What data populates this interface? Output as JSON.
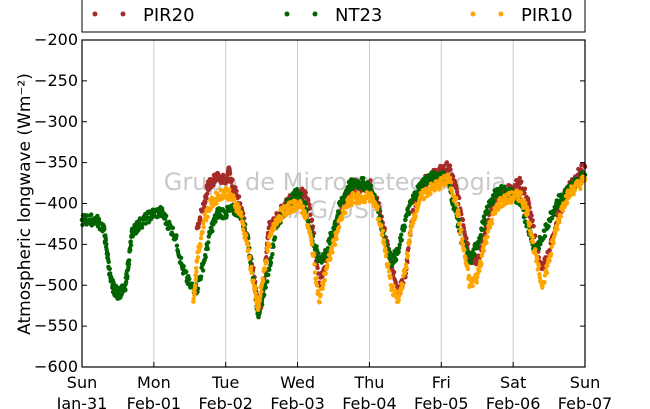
{
  "chart_data": {
    "type": "scatter",
    "ylabel": "Atmospheric longwave (Wm⁻²)",
    "ylim": [
      -600,
      -200
    ],
    "yticks": [
      "−200",
      "−250",
      "−300",
      "−350",
      "−400",
      "−450",
      "−500",
      "−550",
      "−600"
    ],
    "ytick_values": [
      -200,
      -250,
      -300,
      -350,
      -400,
      -450,
      -500,
      -550,
      -600
    ],
    "xlim": [
      0,
      7
    ],
    "x_unit": "days since Jan-31 00:00",
    "xticks": [
      {
        "day": "Sun",
        "date": "Jan-31"
      },
      {
        "day": "Mon",
        "date": "Feb-01"
      },
      {
        "day": "Tue",
        "date": "Feb-02"
      },
      {
        "day": "Wed",
        "date": "Feb-03"
      },
      {
        "day": "Thu",
        "date": "Feb-04"
      },
      {
        "day": "Fri",
        "date": "Feb-05"
      },
      {
        "day": "Sat",
        "date": "Feb-06"
      },
      {
        "day": "Sun",
        "date": "Feb-07"
      }
    ],
    "grid": "vertical",
    "legend_position": "top",
    "watermark_lines": [
      "Grupo de Micrometeorologia",
      "IAG/USP"
    ],
    "series": [
      {
        "name": "PIR20",
        "color": "#a52a2a",
        "start": 1.6,
        "x": [
          1.6,
          1.7,
          1.75,
          1.8,
          1.9,
          2.0,
          2.05,
          2.1,
          2.2,
          2.3,
          2.4,
          2.45,
          2.5,
          2.55,
          2.6,
          2.7,
          2.8,
          2.9,
          3.0,
          3.1,
          3.2,
          3.3,
          3.4,
          3.5,
          3.6,
          3.7,
          3.8,
          3.9,
          4.0,
          4.1,
          4.2,
          4.3,
          4.4,
          4.5,
          4.6,
          4.7,
          4.8,
          4.9,
          5.0,
          5.1,
          5.2,
          5.3,
          5.4,
          5.5,
          5.6,
          5.7,
          5.8,
          5.9,
          6.0,
          6.1,
          6.2,
          6.3,
          6.4,
          6.5,
          6.6,
          6.7,
          6.8,
          6.9,
          7.0
        ],
        "y": [
          -430,
          -400,
          -380,
          -375,
          -365,
          -375,
          -360,
          -380,
          -400,
          -440,
          -490,
          -525,
          -520,
          -480,
          -430,
          -420,
          -405,
          -395,
          -390,
          -385,
          -420,
          -500,
          -470,
          -440,
          -410,
          -385,
          -378,
          -380,
          -375,
          -395,
          -430,
          -470,
          -510,
          -490,
          -410,
          -385,
          -370,
          -365,
          -360,
          -355,
          -380,
          -420,
          -465,
          -470,
          -440,
          -410,
          -390,
          -385,
          -380,
          -375,
          -395,
          -440,
          -480,
          -460,
          -425,
          -395,
          -375,
          -365,
          -355
        ]
      },
      {
        "name": "NT23",
        "color": "#006400",
        "start": 0,
        "x": [
          0.0,
          0.1,
          0.2,
          0.3,
          0.35,
          0.4,
          0.45,
          0.5,
          0.6,
          0.65,
          0.7,
          0.75,
          0.8,
          0.9,
          1.0,
          1.1,
          1.2,
          1.3,
          1.4,
          1.5,
          1.6,
          1.7,
          1.8,
          1.9,
          2.0,
          2.1,
          2.2,
          2.3,
          2.4,
          2.45,
          2.5,
          2.6,
          2.7,
          2.8,
          2.9,
          3.0,
          3.1,
          3.2,
          3.3,
          3.4,
          3.5,
          3.6,
          3.7,
          3.8,
          3.9,
          4.0,
          4.1,
          4.2,
          4.3,
          4.4,
          4.5,
          4.6,
          4.7,
          4.8,
          4.9,
          5.0,
          5.1,
          5.2,
          5.3,
          5.4,
          5.5,
          5.6,
          5.7,
          5.8,
          5.9,
          6.0,
          6.1,
          6.2,
          6.3,
          6.4,
          6.5,
          6.6,
          6.7,
          6.8,
          6.9,
          7.0
        ],
        "y": [
          -420,
          -420,
          -420,
          -430,
          -460,
          -495,
          -505,
          -510,
          -505,
          -470,
          -435,
          -430,
          -425,
          -418,
          -412,
          -410,
          -425,
          -440,
          -480,
          -500,
          -505,
          -470,
          -430,
          -410,
          -412,
          -408,
          -410,
          -440,
          -500,
          -535,
          -520,
          -480,
          -430,
          -410,
          -395,
          -388,
          -400,
          -440,
          -470,
          -460,
          -430,
          -400,
          -380,
          -375,
          -375,
          -380,
          -400,
          -440,
          -470,
          -460,
          -420,
          -395,
          -380,
          -370,
          -368,
          -365,
          -375,
          -410,
          -450,
          -470,
          -450,
          -420,
          -395,
          -385,
          -385,
          -390,
          -400,
          -425,
          -455,
          -445,
          -420,
          -400,
          -390,
          -380,
          -372,
          -365
        ]
      },
      {
        "name": "PIR10",
        "color": "#ffa500",
        "start": 1.55,
        "x": [
          1.55,
          1.6,
          1.7,
          1.8,
          1.9,
          2.0,
          2.1,
          2.2,
          2.3,
          2.4,
          2.45,
          2.5,
          2.6,
          2.7,
          2.8,
          2.9,
          3.0,
          3.1,
          3.2,
          3.3,
          3.4,
          3.5,
          3.6,
          3.7,
          3.8,
          3.9,
          4.0,
          4.1,
          4.2,
          4.3,
          4.4,
          4.5,
          4.6,
          4.7,
          4.8,
          4.9,
          5.0,
          5.1,
          5.2,
          5.3,
          5.4,
          5.5,
          5.6,
          5.7,
          5.8,
          5.9,
          6.0,
          6.1,
          6.2,
          6.3,
          6.4,
          6.5,
          6.6,
          6.7,
          6.8,
          6.9,
          7.0
        ],
        "y": [
          -520,
          -470,
          -420,
          -400,
          -390,
          -385,
          -395,
          -410,
          -450,
          -505,
          -530,
          -500,
          -450,
          -420,
          -410,
          -405,
          -400,
          -410,
          -450,
          -520,
          -480,
          -450,
          -420,
          -400,
          -392,
          -395,
          -390,
          -405,
          -445,
          -500,
          -520,
          -480,
          -420,
          -395,
          -385,
          -380,
          -375,
          -370,
          -395,
          -450,
          -500,
          -490,
          -450,
          -420,
          -400,
          -395,
          -392,
          -390,
          -410,
          -460,
          -500,
          -470,
          -430,
          -400,
          -385,
          -378,
          -370
        ]
      }
    ]
  }
}
